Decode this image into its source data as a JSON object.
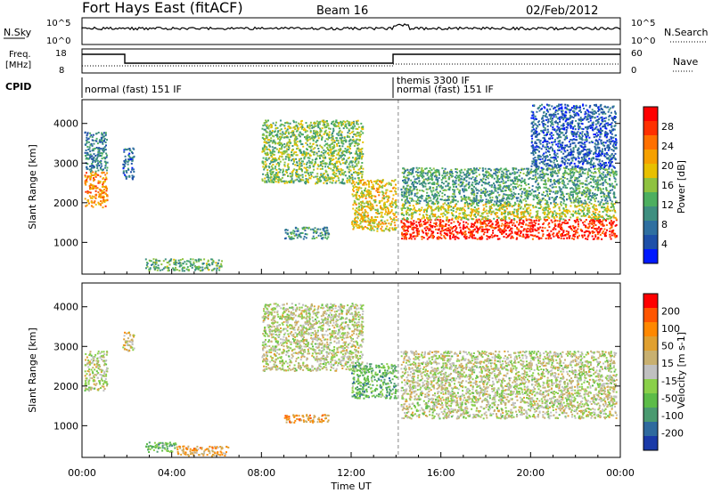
{
  "header": {
    "station": "Fort Hays East (fitACF)",
    "beam": "Beam 16",
    "date": "02/Feb/2012"
  },
  "panels": {
    "nsky": {
      "left_label": "N.Sky",
      "left_ticks": [
        "10^5",
        "10^0"
      ],
      "right_label": "N.Search",
      "right_ticks": [
        "10^5",
        "10^0"
      ]
    },
    "freq": {
      "left_label_1": "Freq.",
      "left_label_2": "[MHz]",
      "left_ticks": [
        "18",
        "8"
      ],
      "right_label": "Nave",
      "right_ticks": [
        "60",
        "0"
      ]
    },
    "cpid": {
      "label": "CPID",
      "segment_1": "normal (fast) 151 IF",
      "segment_2a": "themis 3300 IF",
      "segment_2b": "normal (fast) 151 IF"
    }
  },
  "colors": {
    "power": [
      "#0019ff",
      "#1e4fa8",
      "#2f6fa0",
      "#3f8f80",
      "#4daf60",
      "#8fc240",
      "#e8c000",
      "#f6a000",
      "#ff7000",
      "#ff3000",
      "#ff0000"
    ],
    "velocity": [
      "#1a3aa8",
      "#2f6a9e",
      "#4a9a70",
      "#5cbc48",
      "#8ad04a",
      "#c0c0c0",
      "#c8b070",
      "#e0a030",
      "#ff8800",
      "#ff5500",
      "#ff0000"
    ]
  },
  "chart_data": [
    {
      "type": "heatmap",
      "name": "power",
      "ylabel": "Slant Range [km]",
      "yticks": [
        1000,
        2000,
        3000,
        4000
      ],
      "ylim": [
        200,
        4600
      ],
      "xlim": [
        0,
        24
      ],
      "xticks": [
        "00:00",
        "04:00",
        "08:00",
        "12:00",
        "16:00",
        "20:00",
        "00:00"
      ],
      "colorbar": {
        "label": "Power [dB]",
        "ticks": [
          "28",
          "24",
          "20",
          "16",
          "12",
          "8",
          "4"
        ]
      },
      "regions": [
        {
          "t0": 0.1,
          "t1": 1.1,
          "r0": 1900,
          "r1": 2800,
          "level": 0.75
        },
        {
          "t0": 0.1,
          "t1": 1.1,
          "r0": 2800,
          "r1": 3800,
          "level": 0.25
        },
        {
          "t0": 1.8,
          "t1": 2.3,
          "r0": 2600,
          "r1": 3400,
          "level": 0.2
        },
        {
          "t0": 2.8,
          "t1": 6.2,
          "r0": 300,
          "r1": 600,
          "level": 0.4
        },
        {
          "t0": 8.0,
          "t1": 12.5,
          "r0": 2500,
          "r1": 4100,
          "level": 0.45
        },
        {
          "t0": 9.0,
          "t1": 11.0,
          "r0": 1100,
          "r1": 1400,
          "level": 0.3
        },
        {
          "t0": 12.0,
          "t1": 14.0,
          "r0": 1300,
          "r1": 2600,
          "level": 0.6
        },
        {
          "t0": 14.2,
          "t1": 23.8,
          "r0": 1100,
          "r1": 1600,
          "level": 0.95
        },
        {
          "t0": 14.2,
          "t1": 23.8,
          "r0": 1600,
          "r1": 2000,
          "level": 0.55
        },
        {
          "t0": 14.2,
          "t1": 23.8,
          "r0": 2000,
          "r1": 2900,
          "level": 0.35
        },
        {
          "t0": 20.0,
          "t1": 23.8,
          "r0": 2900,
          "r1": 4500,
          "level": 0.15
        }
      ]
    },
    {
      "type": "heatmap",
      "name": "velocity",
      "ylabel": "Slant Range [km]",
      "xlabel": "Time UT",
      "yticks": [
        1000,
        2000,
        3000,
        4000
      ],
      "ylim": [
        200,
        4600
      ],
      "xlim": [
        0,
        24
      ],
      "xticks": [
        "00:00",
        "04:00",
        "08:00",
        "12:00",
        "16:00",
        "20:00",
        "00:00"
      ],
      "colorbar": {
        "label": "Velocity [m s-1]",
        "ticks": [
          "200",
          "100",
          "50",
          "15",
          "-15",
          "-50",
          "-100",
          "-200"
        ]
      },
      "regions": [
        {
          "t0": 0.1,
          "t1": 1.1,
          "r0": 1900,
          "r1": 2900,
          "level": 0.5
        },
        {
          "t0": 1.8,
          "t1": 2.3,
          "r0": 2900,
          "r1": 3400,
          "level": 0.6
        },
        {
          "t0": 2.8,
          "t1": 4.2,
          "r0": 350,
          "r1": 600,
          "level": 0.3
        },
        {
          "t0": 4.2,
          "t1": 6.5,
          "r0": 250,
          "r1": 500,
          "level": 0.7
        },
        {
          "t0": 8.0,
          "t1": 12.5,
          "r0": 2400,
          "r1": 4100,
          "level": 0.5
        },
        {
          "t0": 9.0,
          "t1": 11.0,
          "r0": 1100,
          "r1": 1300,
          "level": 0.75
        },
        {
          "t0": 12.0,
          "t1": 14.0,
          "r0": 1700,
          "r1": 2600,
          "level": 0.3
        },
        {
          "t0": 14.2,
          "t1": 23.8,
          "r0": 1200,
          "r1": 2000,
          "level": 0.5
        },
        {
          "t0": 14.2,
          "t1": 23.8,
          "r0": 2000,
          "r1": 2900,
          "level": 0.5
        }
      ]
    }
  ]
}
